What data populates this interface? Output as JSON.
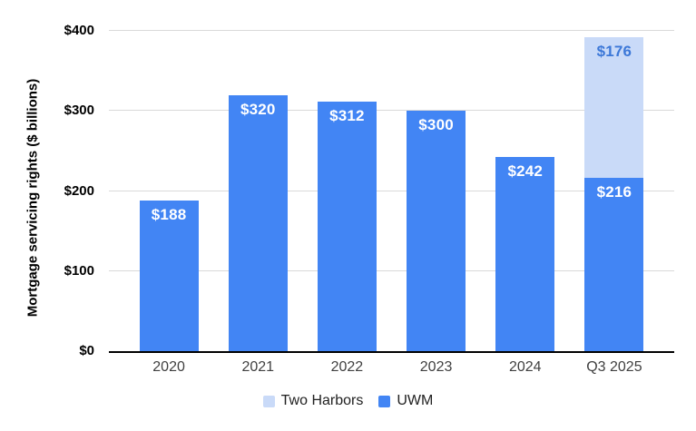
{
  "chart_data": {
    "type": "bar",
    "stacked": true,
    "title": "",
    "xlabel": "",
    "ylabel": "Mortgage servicing rights ($ billions)",
    "ylim": [
      0,
      400
    ],
    "grid": "horizontal",
    "legend_position": "bottom-center",
    "categories": [
      "2020",
      "2021",
      "2022",
      "2023",
      "2024",
      "Q3 2025"
    ],
    "series": [
      {
        "name": "UWM",
        "color": "#4285f4",
        "label_color": "#ffffff",
        "values": [
          188,
          320,
          312,
          300,
          242,
          216
        ],
        "labels": [
          "$188",
          "$320",
          "$312",
          "$300",
          "$242",
          "$216"
        ]
      },
      {
        "name": "Two Harbors",
        "color": "#c9daf8",
        "label_color": "#3c78d8",
        "values": [
          0,
          0,
          0,
          0,
          0,
          176
        ],
        "labels": [
          "",
          "",
          "",
          "",
          "",
          "$176"
        ]
      }
    ],
    "yticks": [
      {
        "value": 0,
        "label": "$0"
      },
      {
        "value": 100,
        "label": "$100"
      },
      {
        "value": 200,
        "label": "$200"
      },
      {
        "value": 300,
        "label": "$300"
      },
      {
        "value": 400,
        "label": "$400"
      }
    ],
    "legend": [
      {
        "label": "Two Harbors",
        "color": "#c9daf8"
      },
      {
        "label": "UWM",
        "color": "#4285f4"
      }
    ]
  },
  "colors": {
    "uwm_blue": "#4285f4",
    "two_harbors_light_blue": "#c9daf8",
    "value_label_on_light": "#3c78d8",
    "value_label_on_dark": "#ffffff",
    "gridline": "#d9d9d9",
    "axis_line": "#000000",
    "x_axis_text": "#3f3f3f",
    "y_tick_text": "#000000",
    "legend_text": "#212121",
    "background": "#ffffff"
  }
}
